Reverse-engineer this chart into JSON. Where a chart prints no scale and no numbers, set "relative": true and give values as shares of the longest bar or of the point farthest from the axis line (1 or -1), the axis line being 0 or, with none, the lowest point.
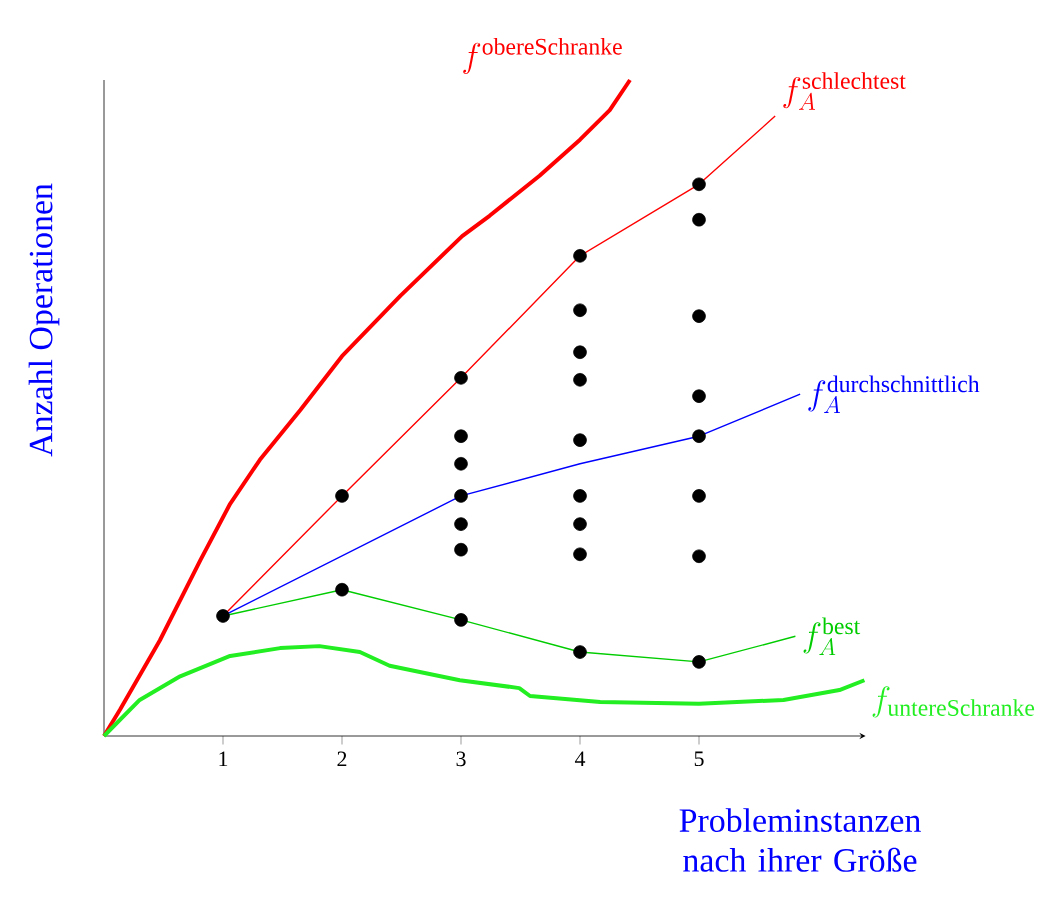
{
  "chart_data": {
    "type": "line",
    "relative": true,
    "xlim": [
      0,
      6.4
    ],
    "xticks": [
      1,
      2,
      3,
      4,
      5
    ],
    "xlabel": "Probleminstanzen nach ihrer Größe",
    "ylabel": "Anzahl Operationen",
    "grid": false,
    "series": [
      {
        "name": "f^{\\mathrm{obereSchranke}}",
        "color": "#ff0000",
        "marker": "none",
        "x": [
          0,
          0.134,
          0.47,
          0.81,
          1.06,
          1.31,
          1.65,
          2.0,
          2.49,
          3.01,
          3.24,
          3.66,
          4.0,
          4.25,
          4.42
        ],
        "values": [
          0,
          0.04,
          0.146,
          0.268,
          0.354,
          0.421,
          0.497,
          0.579,
          0.671,
          0.762,
          0.793,
          0.854,
          0.909,
          0.954,
          1.0
        ]
      },
      {
        "name": "f_A^{\\mathrm{schlechtest}}",
        "color": "#ff0000",
        "marker": "none",
        "x": [
          1,
          2,
          3,
          4,
          5,
          5.64
        ],
        "values": [
          0.183,
          0.366,
          0.546,
          0.732,
          0.841,
          0.945
        ]
      },
      {
        "name": "f_A^{\\mathrm{durchschnittlich}}",
        "color": "#0000ff",
        "marker": "none",
        "x": [
          1,
          3,
          4,
          5,
          5.85
        ],
        "values": [
          0.183,
          0.366,
          0.415,
          0.457,
          0.521
        ]
      },
      {
        "name": "f_A^{\\mathrm{best}}",
        "color": "#00cc00",
        "marker": "none",
        "x": [
          1,
          2,
          3,
          4,
          5,
          5.81
        ],
        "values": [
          0.183,
          0.223,
          0.177,
          0.128,
          0.113,
          0.152
        ]
      },
      {
        "name": "f_{\\mathrm{untereSchranke}}",
        "color": "#22ee22",
        "marker": "none",
        "x": [
          0,
          0.3,
          0.64,
          1.06,
          1.48,
          1.81,
          2.15,
          2.4,
          2.99,
          3.49,
          3.58,
          4.17,
          5.0,
          5.71,
          6.18,
          6.39
        ],
        "values": [
          0,
          0.055,
          0.091,
          0.122,
          0.134,
          0.137,
          0.128,
          0.107,
          0.085,
          0.073,
          0.061,
          0.052,
          0.049,
          0.055,
          0.07,
          0.085
        ]
      },
      {
        "color": "#000000",
        "type": "scatter",
        "marker": "circle",
        "x": [
          1,
          2,
          2,
          3,
          3,
          3,
          3,
          3,
          3,
          3,
          4,
          4,
          4,
          4,
          4,
          4,
          4,
          4,
          4,
          5,
          5,
          5,
          5,
          5,
          5,
          5,
          5
        ],
        "values": [
          0.183,
          0.366,
          0.223,
          0.546,
          0.457,
          0.415,
          0.366,
          0.323,
          0.284,
          0.177,
          0.732,
          0.649,
          0.585,
          0.543,
          0.451,
          0.366,
          0.323,
          0.277,
          0.128,
          0.841,
          0.787,
          0.64,
          0.518,
          0.457,
          0.366,
          0.274,
          0.113
        ]
      }
    ]
  }
}
